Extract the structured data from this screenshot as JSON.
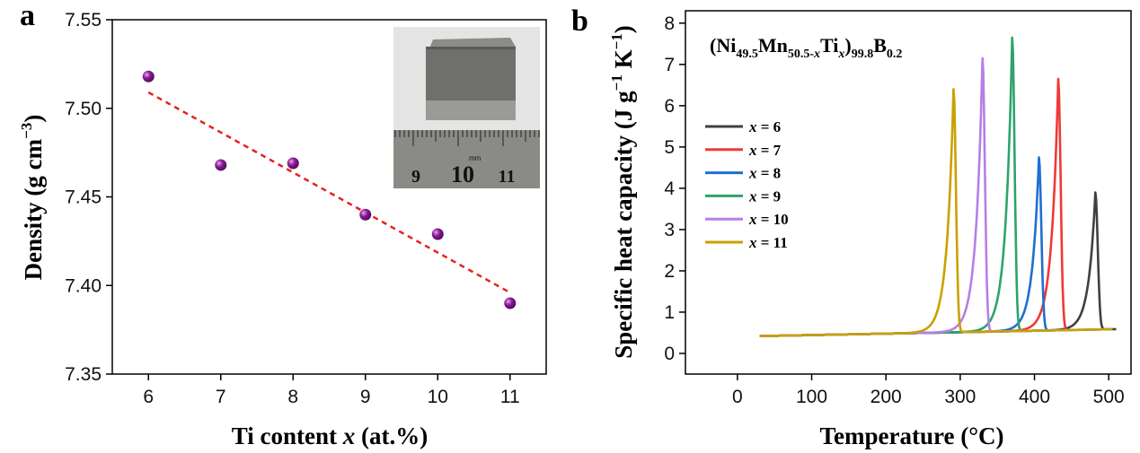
{
  "panels": {
    "a": "a",
    "b": "b"
  },
  "chart_data": [
    {
      "type": "scatter",
      "xlabel_prefix": "Ti content ",
      "xlabel_var": "x",
      "xlabel_suffix": " (at.%)",
      "ylabel": "Density (g cm",
      "ylabel_exp": "−3",
      "ylabel_close": ")",
      "xlim": [
        5.5,
        11.5
      ],
      "ylim": [
        7.35,
        7.55
      ],
      "xticks": [
        6,
        7,
        8,
        9,
        10,
        11
      ],
      "yticks": [
        7.35,
        7.4,
        7.45,
        7.5,
        7.55
      ],
      "ytick_labels": [
        "7.35",
        "7.40",
        "7.45",
        "7.50",
        "7.55"
      ],
      "x": [
        6,
        7,
        8,
        9,
        10,
        11
      ],
      "y": [
        7.518,
        7.468,
        7.469,
        7.44,
        7.429,
        7.39
      ],
      "fit_line": {
        "x": [
          6,
          11
        ],
        "y": [
          7.509,
          7.396
        ]
      },
      "inset_ruler_labels": [
        "9",
        "10",
        "11"
      ],
      "inset_ruler_unit": "mm",
      "colors": {
        "points": "#8a1a96",
        "fit": "#e8211d"
      }
    },
    {
      "type": "line",
      "formula": {
        "p1": "(Ni",
        "s1": "49.5",
        "p2": "Mn",
        "s2a": "50.5-",
        "s2b": "x",
        "p3": "Ti",
        "s3": "x",
        "p4": ")",
        "s4": "99.8",
        "p5": "B",
        "s5": "0.2"
      },
      "xlabel": "Temperature (°C)",
      "ylabel": "Specific heat capacity (J g",
      "ylabel_exp1": "−1",
      "ylabel_mid": " K",
      "ylabel_exp2": "−1",
      "ylabel_close": ")",
      "xlim": [
        -70,
        530
      ],
      "ylim": [
        -0.5,
        8.3
      ],
      "xticks": [
        0,
        100,
        200,
        300,
        400,
        500
      ],
      "yticks": [
        0,
        1,
        2,
        3,
        4,
        5,
        6,
        7,
        8
      ],
      "series": [
        {
          "name": "x = 6",
          "var": "x",
          "eq": " = 6",
          "color": "#404040",
          "peak_T": 482,
          "peak_cp": 3.9,
          "end_T": 510
        },
        {
          "name": "x = 7",
          "var": "x",
          "eq": " = 7",
          "color": "#ee3a35",
          "peak_T": 432,
          "peak_cp": 6.65,
          "end_T": 445
        },
        {
          "name": "x = 8",
          "var": "x",
          "eq": " = 8",
          "color": "#1e6fd0",
          "peak_T": 406,
          "peak_cp": 4.75,
          "end_T": 505
        },
        {
          "name": "x = 9",
          "var": "x",
          "eq": " = 9",
          "color": "#2ea36a",
          "peak_T": 370,
          "peak_cp": 7.65,
          "end_T": 430
        },
        {
          "name": "x = 10",
          "var": "x",
          "eq": " = 10",
          "color": "#b57fe6",
          "peak_T": 330,
          "peak_cp": 7.15,
          "end_T": 440
        },
        {
          "name": "x = 11",
          "var": "x",
          "eq": " = 11",
          "color": "#c9a100",
          "peak_T": 291,
          "peak_cp": 6.4,
          "end_T": 505
        }
      ]
    }
  ]
}
